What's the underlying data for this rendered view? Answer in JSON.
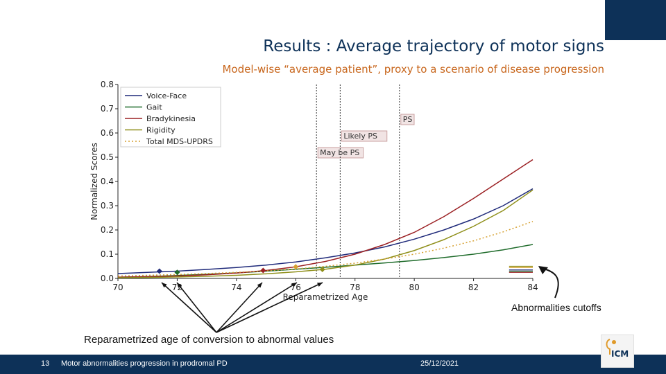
{
  "slide": {
    "title": "Results : Average trajectory of motor signs",
    "subtitle": "Model-wise “average patient”, proxy to a scenario of disease progression",
    "cutoff_label": "Abnormalities cutoffs",
    "conversion_label": "Reparametrized age of conversion to abnormal values",
    "colors": {
      "title": "#0d3158",
      "subtitle": "#c8661c",
      "footer_bg": "#0d3158"
    }
  },
  "footer": {
    "page_number": "13",
    "text": "Motor abnormalities progression in prodromal PD",
    "date": "25/12/2021"
  },
  "logo": {
    "text": "ICM"
  },
  "chart_data": {
    "type": "line",
    "xlabel": "Reparametrized Age",
    "ylabel": "Normalized Scores",
    "xlim": [
      70,
      84
    ],
    "ylim": [
      0.0,
      0.8
    ],
    "xticks": [
      "70",
      "72",
      "74",
      "76",
      "78",
      "80",
      "82",
      "84"
    ],
    "yticks": [
      "0.0",
      "0.1",
      "0.2",
      "0.3",
      "0.4",
      "0.5",
      "0.6",
      "0.7",
      "0.8"
    ],
    "grid": false,
    "legend_position": "top-left",
    "x": [
      70,
      71,
      72,
      73,
      74,
      75,
      76,
      77,
      78,
      79,
      80,
      81,
      82,
      83,
      84
    ],
    "series": [
      {
        "name": "Voice-Face",
        "color": "#1f2a7a",
        "style": "solid",
        "values": [
          0.02,
          0.025,
          0.03,
          0.037,
          0.045,
          0.055,
          0.068,
          0.085,
          0.105,
          0.13,
          0.162,
          0.2,
          0.245,
          0.3,
          0.37
        ]
      },
      {
        "name": "Gait",
        "color": "#1e6b2a",
        "style": "solid",
        "values": [
          0.005,
          0.008,
          0.012,
          0.017,
          0.023,
          0.03,
          0.038,
          0.046,
          0.055,
          0.064,
          0.074,
          0.086,
          0.1,
          0.118,
          0.14
        ]
      },
      {
        "name": "Bradykinesia",
        "color": "#9b2023",
        "style": "solid",
        "values": [
          0.005,
          0.007,
          0.01,
          0.015,
          0.022,
          0.033,
          0.048,
          0.07,
          0.1,
          0.14,
          0.19,
          0.255,
          0.33,
          0.41,
          0.49
        ]
      },
      {
        "name": "Rigidity",
        "color": "#8f8f1a",
        "style": "solid",
        "values": [
          0.003,
          0.004,
          0.006,
          0.009,
          0.013,
          0.019,
          0.027,
          0.038,
          0.055,
          0.08,
          0.115,
          0.16,
          0.215,
          0.28,
          0.365
        ]
      },
      {
        "name": "Total MDS-UPDRS",
        "color": "#d6a030",
        "style": "dotted",
        "values": [
          0.01,
          0.013,
          0.016,
          0.02,
          0.025,
          0.031,
          0.039,
          0.05,
          0.063,
          0.08,
          0.1,
          0.125,
          0.155,
          0.192,
          0.235
        ]
      }
    ],
    "conversion_points": [
      {
        "series": "Voice-Face",
        "x": 71.4,
        "y": 0.03
      },
      {
        "series": "Gait",
        "x": 72.0,
        "y": 0.025
      },
      {
        "series": "Bradykinesia",
        "x": 74.9,
        "y": 0.033
      },
      {
        "series": "Total MDS-UPDRS",
        "x": 76.0,
        "y": 0.048
      },
      {
        "series": "Rigidity",
        "x": 76.9,
        "y": 0.037
      }
    ],
    "cutoffs": [
      {
        "series": "Rigidity",
        "y": 0.05
      },
      {
        "series": "Total MDS-UPDRS",
        "y": 0.045
      },
      {
        "series": "Voice-Face",
        "y": 0.035
      },
      {
        "series": "Gait",
        "y": 0.03
      },
      {
        "series": "Bradykinesia",
        "y": 0.025
      }
    ],
    "vlines": [
      {
        "x": 76.7,
        "label": "May be PS"
      },
      {
        "x": 77.5,
        "label": "Likely PS"
      },
      {
        "x": 79.5,
        "label": "PS"
      }
    ]
  }
}
